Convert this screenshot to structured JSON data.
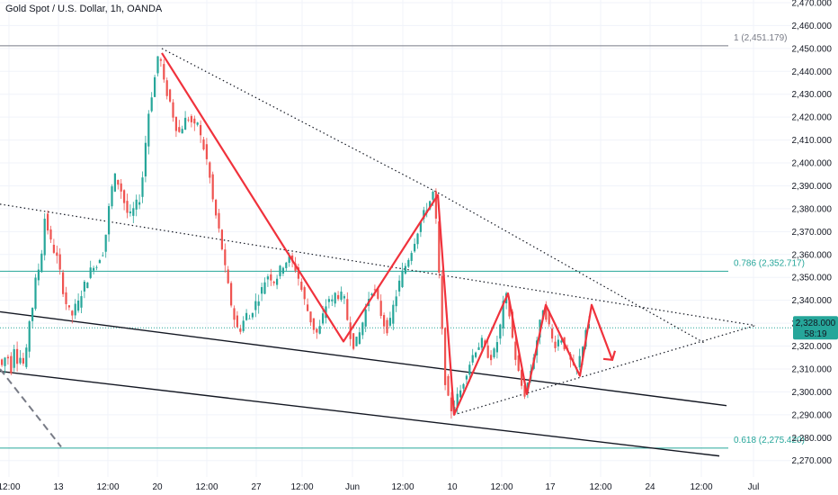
{
  "title": "Gold Spot / U.S. Dollar, 1h, OANDA",
  "colors": {
    "up": "#26a69a",
    "down": "#ef5350",
    "pattern": "#f0323c",
    "trend": "#131722",
    "fib_786": "#26a69a",
    "fib_618": "#26a69a",
    "fib_1": "#787b86",
    "price_label_bg": "#26a69a",
    "grid": "#f0f3fa"
  },
  "chart_data": {
    "type": "candlestick",
    "symbol": "Gold Spot / U.S. Dollar",
    "interval": "1h",
    "source": "OANDA",
    "y_axis_ticks": [
      "2,470.000",
      "2,460.000",
      "2,450.000",
      "2,440.000",
      "2,430.000",
      "2,420.000",
      "2,410.000",
      "2,400.000",
      "2,390.000",
      "2,380.000",
      "2,370.000",
      "2,360.000",
      "2,350.000",
      "2,340.000",
      "2,330.000",
      "2,320.000",
      "2,310.000",
      "2,300.000",
      "2,290.000",
      "2,280.000",
      "2,270.000"
    ],
    "ylim": [
      2268,
      2472
    ],
    "x_axis_labels": [
      "12:00",
      "13",
      "12:00",
      "20",
      "12:00",
      "27",
      "12:00",
      "Jun",
      "12:00",
      "10",
      "12:00",
      "17",
      "12:00",
      "24",
      "12:00",
      "Jul"
    ],
    "current_price": {
      "value": "2,328.000",
      "countdown": "58:19"
    },
    "fib_levels": [
      {
        "label": "1 (2,451.179)",
        "value": 2451.179
      },
      {
        "label": "0.786 (2,352.717)",
        "value": 2352.717
      },
      {
        "label": "0.618 (2,275.420)",
        "value": 2275.42
      }
    ],
    "price_path": [
      [
        0,
        2315
      ],
      [
        5,
        2311
      ],
      [
        10,
        2318
      ],
      [
        14,
        2308
      ],
      [
        18,
        2320
      ],
      [
        22,
        2313
      ],
      [
        26,
        2316
      ],
      [
        30,
        2309
      ],
      [
        34,
        2330
      ],
      [
        38,
        2336
      ],
      [
        42,
        2349
      ],
      [
        46,
        2355
      ],
      [
        50,
        2365
      ],
      [
        52,
        2376
      ],
      [
        55,
        2372
      ],
      [
        58,
        2366
      ],
      [
        62,
        2362
      ],
      [
        66,
        2358
      ],
      [
        70,
        2350
      ],
      [
        74,
        2341
      ],
      [
        78,
        2336
      ],
      [
        82,
        2333
      ],
      [
        86,
        2337
      ],
      [
        90,
        2339
      ],
      [
        94,
        2345
      ],
      [
        98,
        2348
      ],
      [
        102,
        2352
      ],
      [
        106,
        2356
      ],
      [
        110,
        2355
      ],
      [
        114,
        2360
      ],
      [
        118,
        2362
      ],
      [
        122,
        2376
      ],
      [
        126,
        2388
      ],
      [
        130,
        2394
      ],
      [
        134,
        2391
      ],
      [
        138,
        2387
      ],
      [
        142,
        2380
      ],
      [
        146,
        2376
      ],
      [
        150,
        2379
      ],
      [
        154,
        2382
      ],
      [
        158,
        2385
      ],
      [
        162,
        2398
      ],
      [
        166,
        2418
      ],
      [
        170,
        2428
      ],
      [
        174,
        2436
      ],
      [
        177,
        2446
      ],
      [
        180,
        2448
      ],
      [
        183,
        2438
      ],
      [
        186,
        2432
      ],
      [
        190,
        2429
      ],
      [
        194,
        2422
      ],
      [
        198,
        2416
      ],
      [
        202,
        2413
      ],
      [
        206,
        2417
      ],
      [
        210,
        2420
      ],
      [
        214,
        2419
      ],
      [
        218,
        2415
      ],
      [
        222,
        2418
      ],
      [
        226,
        2410
      ],
      [
        230,
        2405
      ],
      [
        234,
        2398
      ],
      [
        237,
        2389
      ],
      [
        240,
        2381
      ],
      [
        244,
        2374
      ],
      [
        248,
        2366
      ],
      [
        252,
        2355
      ],
      [
        256,
        2346
      ],
      [
        260,
        2337
      ],
      [
        264,
        2330
      ],
      [
        268,
        2326
      ],
      [
        272,
        2330
      ],
      [
        276,
        2334
      ],
      [
        280,
        2332
      ],
      [
        284,
        2337
      ],
      [
        288,
        2340
      ],
      [
        292,
        2343
      ],
      [
        296,
        2348
      ],
      [
        300,
        2351
      ],
      [
        304,
        2350
      ],
      [
        308,
        2348
      ],
      [
        312,
        2352
      ],
      [
        316,
        2355
      ],
      [
        320,
        2357
      ],
      [
        324,
        2358
      ],
      [
        328,
        2356
      ],
      [
        332,
        2353
      ],
      [
        336,
        2347
      ],
      [
        340,
        2341
      ],
      [
        344,
        2336
      ],
      [
        348,
        2331
      ],
      [
        352,
        2327
      ],
      [
        356,
        2325
      ],
      [
        360,
        2331
      ],
      [
        364,
        2337
      ],
      [
        368,
        2341
      ],
      [
        372,
        2339
      ],
      [
        376,
        2344
      ],
      [
        380,
        2341
      ],
      [
        384,
        2343
      ],
      [
        388,
        2333
      ],
      [
        392,
        2325
      ],
      [
        396,
        2320
      ],
      [
        400,
        2323
      ],
      [
        404,
        2328
      ],
      [
        408,
        2334
      ],
      [
        412,
        2341
      ],
      [
        416,
        2345
      ],
      [
        420,
        2343
      ],
      [
        424,
        2337
      ],
      [
        428,
        2331
      ],
      [
        432,
        2327
      ],
      [
        436,
        2330
      ],
      [
        440,
        2338
      ],
      [
        444,
        2344
      ],
      [
        448,
        2350
      ],
      [
        452,
        2354
      ],
      [
        456,
        2358
      ],
      [
        460,
        2362
      ],
      [
        464,
        2367
      ],
      [
        468,
        2372
      ],
      [
        472,
        2376
      ],
      [
        476,
        2380
      ],
      [
        480,
        2383
      ],
      [
        484,
        2387
      ],
      [
        488,
        2371
      ],
      [
        491,
        2348
      ],
      [
        494,
        2326
      ],
      [
        497,
        2306
      ],
      [
        500,
        2298
      ],
      [
        503,
        2292
      ],
      [
        506,
        2293
      ],
      [
        510,
        2297
      ],
      [
        514,
        2300
      ],
      [
        518,
        2305
      ],
      [
        522,
        2310
      ],
      [
        526,
        2314
      ],
      [
        530,
        2318
      ],
      [
        534,
        2320
      ],
      [
        538,
        2322
      ],
      [
        542,
        2318
      ],
      [
        546,
        2316
      ],
      [
        550,
        2315
      ],
      [
        554,
        2320
      ],
      [
        558,
        2327
      ],
      [
        562,
        2338
      ],
      [
        566,
        2342
      ],
      [
        570,
        2330
      ],
      [
        574,
        2318
      ],
      [
        578,
        2310
      ],
      [
        582,
        2303
      ],
      [
        586,
        2299
      ],
      [
        590,
        2305
      ],
      [
        594,
        2312
      ],
      [
        598,
        2320
      ],
      [
        602,
        2328
      ],
      [
        606,
        2337
      ],
      [
        610,
        2333
      ],
      [
        614,
        2327
      ],
      [
        618,
        2320
      ],
      [
        622,
        2322
      ],
      [
        626,
        2324
      ],
      [
        630,
        2320
      ],
      [
        634,
        2316
      ],
      [
        638,
        2312
      ],
      [
        642,
        2308
      ],
      [
        646,
        2313
      ],
      [
        650,
        2320
      ],
      [
        654,
        2328
      ]
    ]
  }
}
